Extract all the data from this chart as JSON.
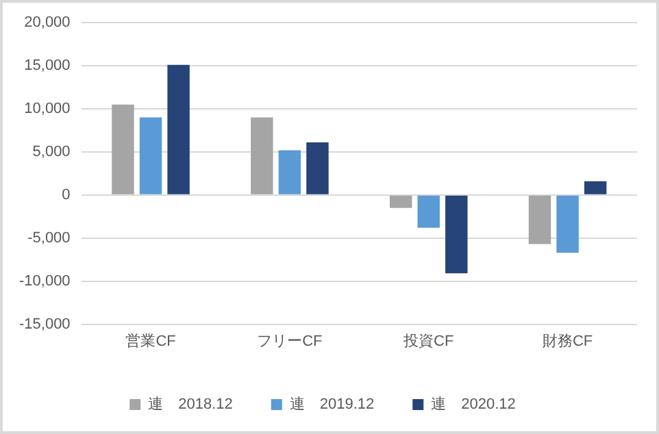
{
  "chart_data": {
    "type": "bar",
    "categories": [
      "営業CF",
      "フリーCF",
      "投資CF",
      "財務CF"
    ],
    "series": [
      {
        "name": "連　2018.12",
        "color": "#a5a5a5",
        "values": [
          10500,
          9000,
          -1500,
          -5700
        ]
      },
      {
        "name": "連　2019.12",
        "color": "#5b9bd5",
        "values": [
          9000,
          5200,
          -3800,
          -6700
        ]
      },
      {
        "name": "連　2020.12",
        "color": "#264478",
        "values": [
          15100,
          6100,
          -9100,
          1600
        ]
      }
    ],
    "ylim": [
      -15000,
      20000
    ],
    "yticks": [
      {
        "value": -15000,
        "label": "-15,000"
      },
      {
        "value": -10000,
        "label": "-10,000"
      },
      {
        "value": -5000,
        "label": "-5,000"
      },
      0,
      {
        "value": 5000,
        "label": "5,000"
      },
      {
        "value": 10000,
        "label": "10,000"
      },
      {
        "value": 15000,
        "label": "15,000"
      },
      {
        "value": 20000,
        "label": "20,000"
      }
    ],
    "grid": "y",
    "legend": "bottom"
  }
}
